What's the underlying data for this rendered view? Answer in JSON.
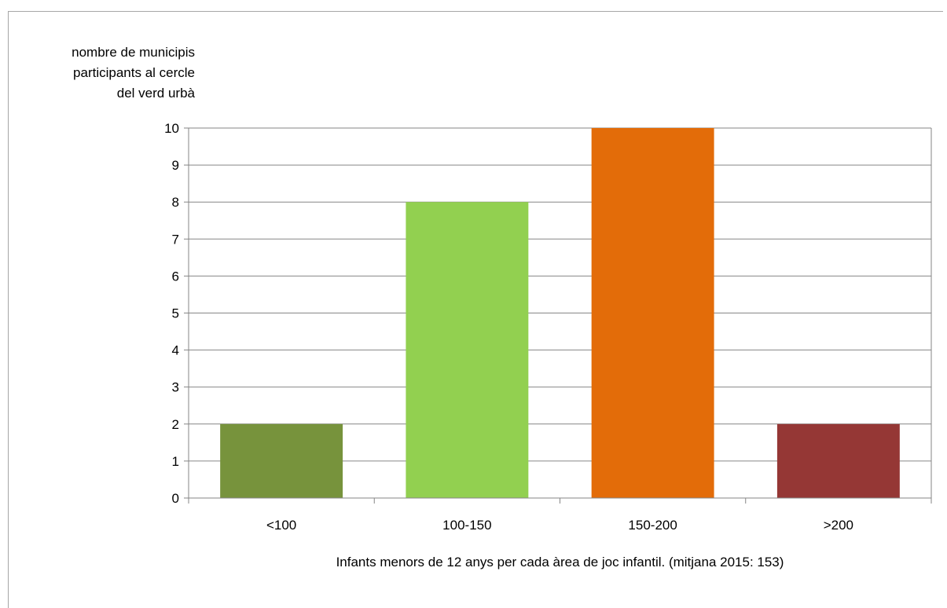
{
  "chart_data": {
    "type": "bar",
    "categories": [
      "<100",
      "100-150",
      "150-200",
      ">200"
    ],
    "values": [
      2,
      8,
      10,
      2
    ],
    "colors": [
      "#77933c",
      "#92d050",
      "#e36c09",
      "#953735"
    ],
    "title": "",
    "xlabel": "Infants menors de 12 anys per cada àrea de joc infantil. (mitjana 2015: 153)",
    "ylabel_lines": [
      "nombre de municipis",
      "participants al cercle",
      "del verd urbà"
    ],
    "ylim": [
      0,
      10
    ],
    "yticks": [
      "0",
      "1",
      "2",
      "3",
      "4",
      "5",
      "6",
      "7",
      "8",
      "9",
      "10"
    ],
    "grid": true,
    "legend": "none"
  }
}
